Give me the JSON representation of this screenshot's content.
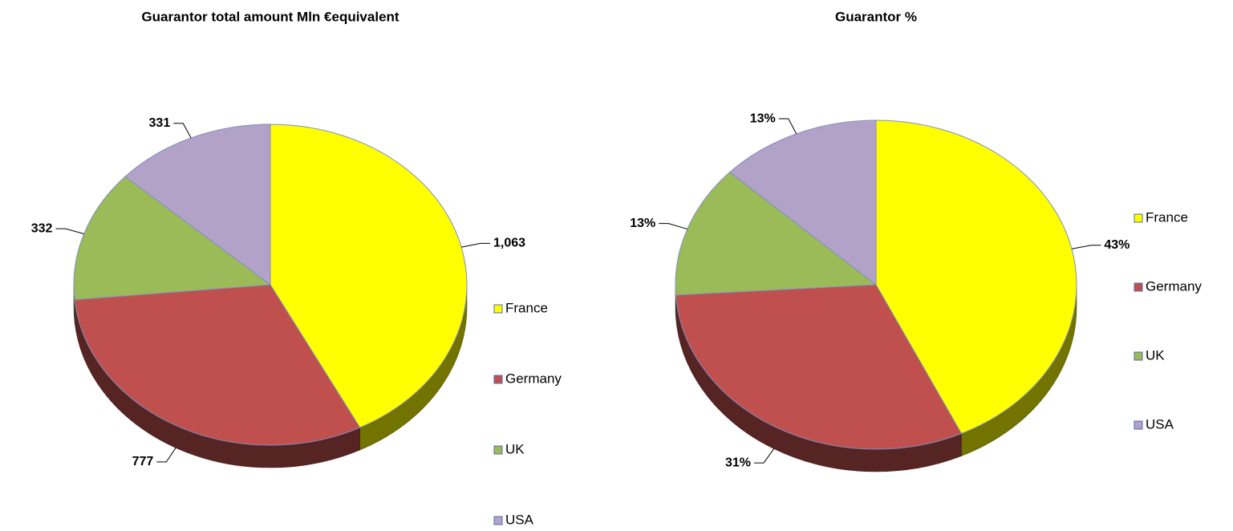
{
  "chart_data": [
    {
      "type": "pie",
      "title": "Guarantor total amount Mln €equivalent",
      "categories": [
        "France",
        "Germany",
        "UK",
        "USA"
      ],
      "values": [
        1063,
        777,
        332,
        331
      ],
      "value_labels": [
        "1,063",
        "777",
        "332",
        "331"
      ],
      "colors": [
        "#ffff00",
        "#c0504d",
        "#9bbb59",
        "#b3a2c7"
      ]
    },
    {
      "type": "pie",
      "title": "Guarantor %",
      "categories": [
        "France",
        "Germany",
        "UK",
        "USA"
      ],
      "values": [
        43,
        31,
        13,
        13
      ],
      "value_labels": [
        "43%",
        "31%",
        "13%",
        "13%"
      ],
      "colors": [
        "#ffff00",
        "#c0504d",
        "#9bbb59",
        "#b3a2c7"
      ]
    }
  ]
}
